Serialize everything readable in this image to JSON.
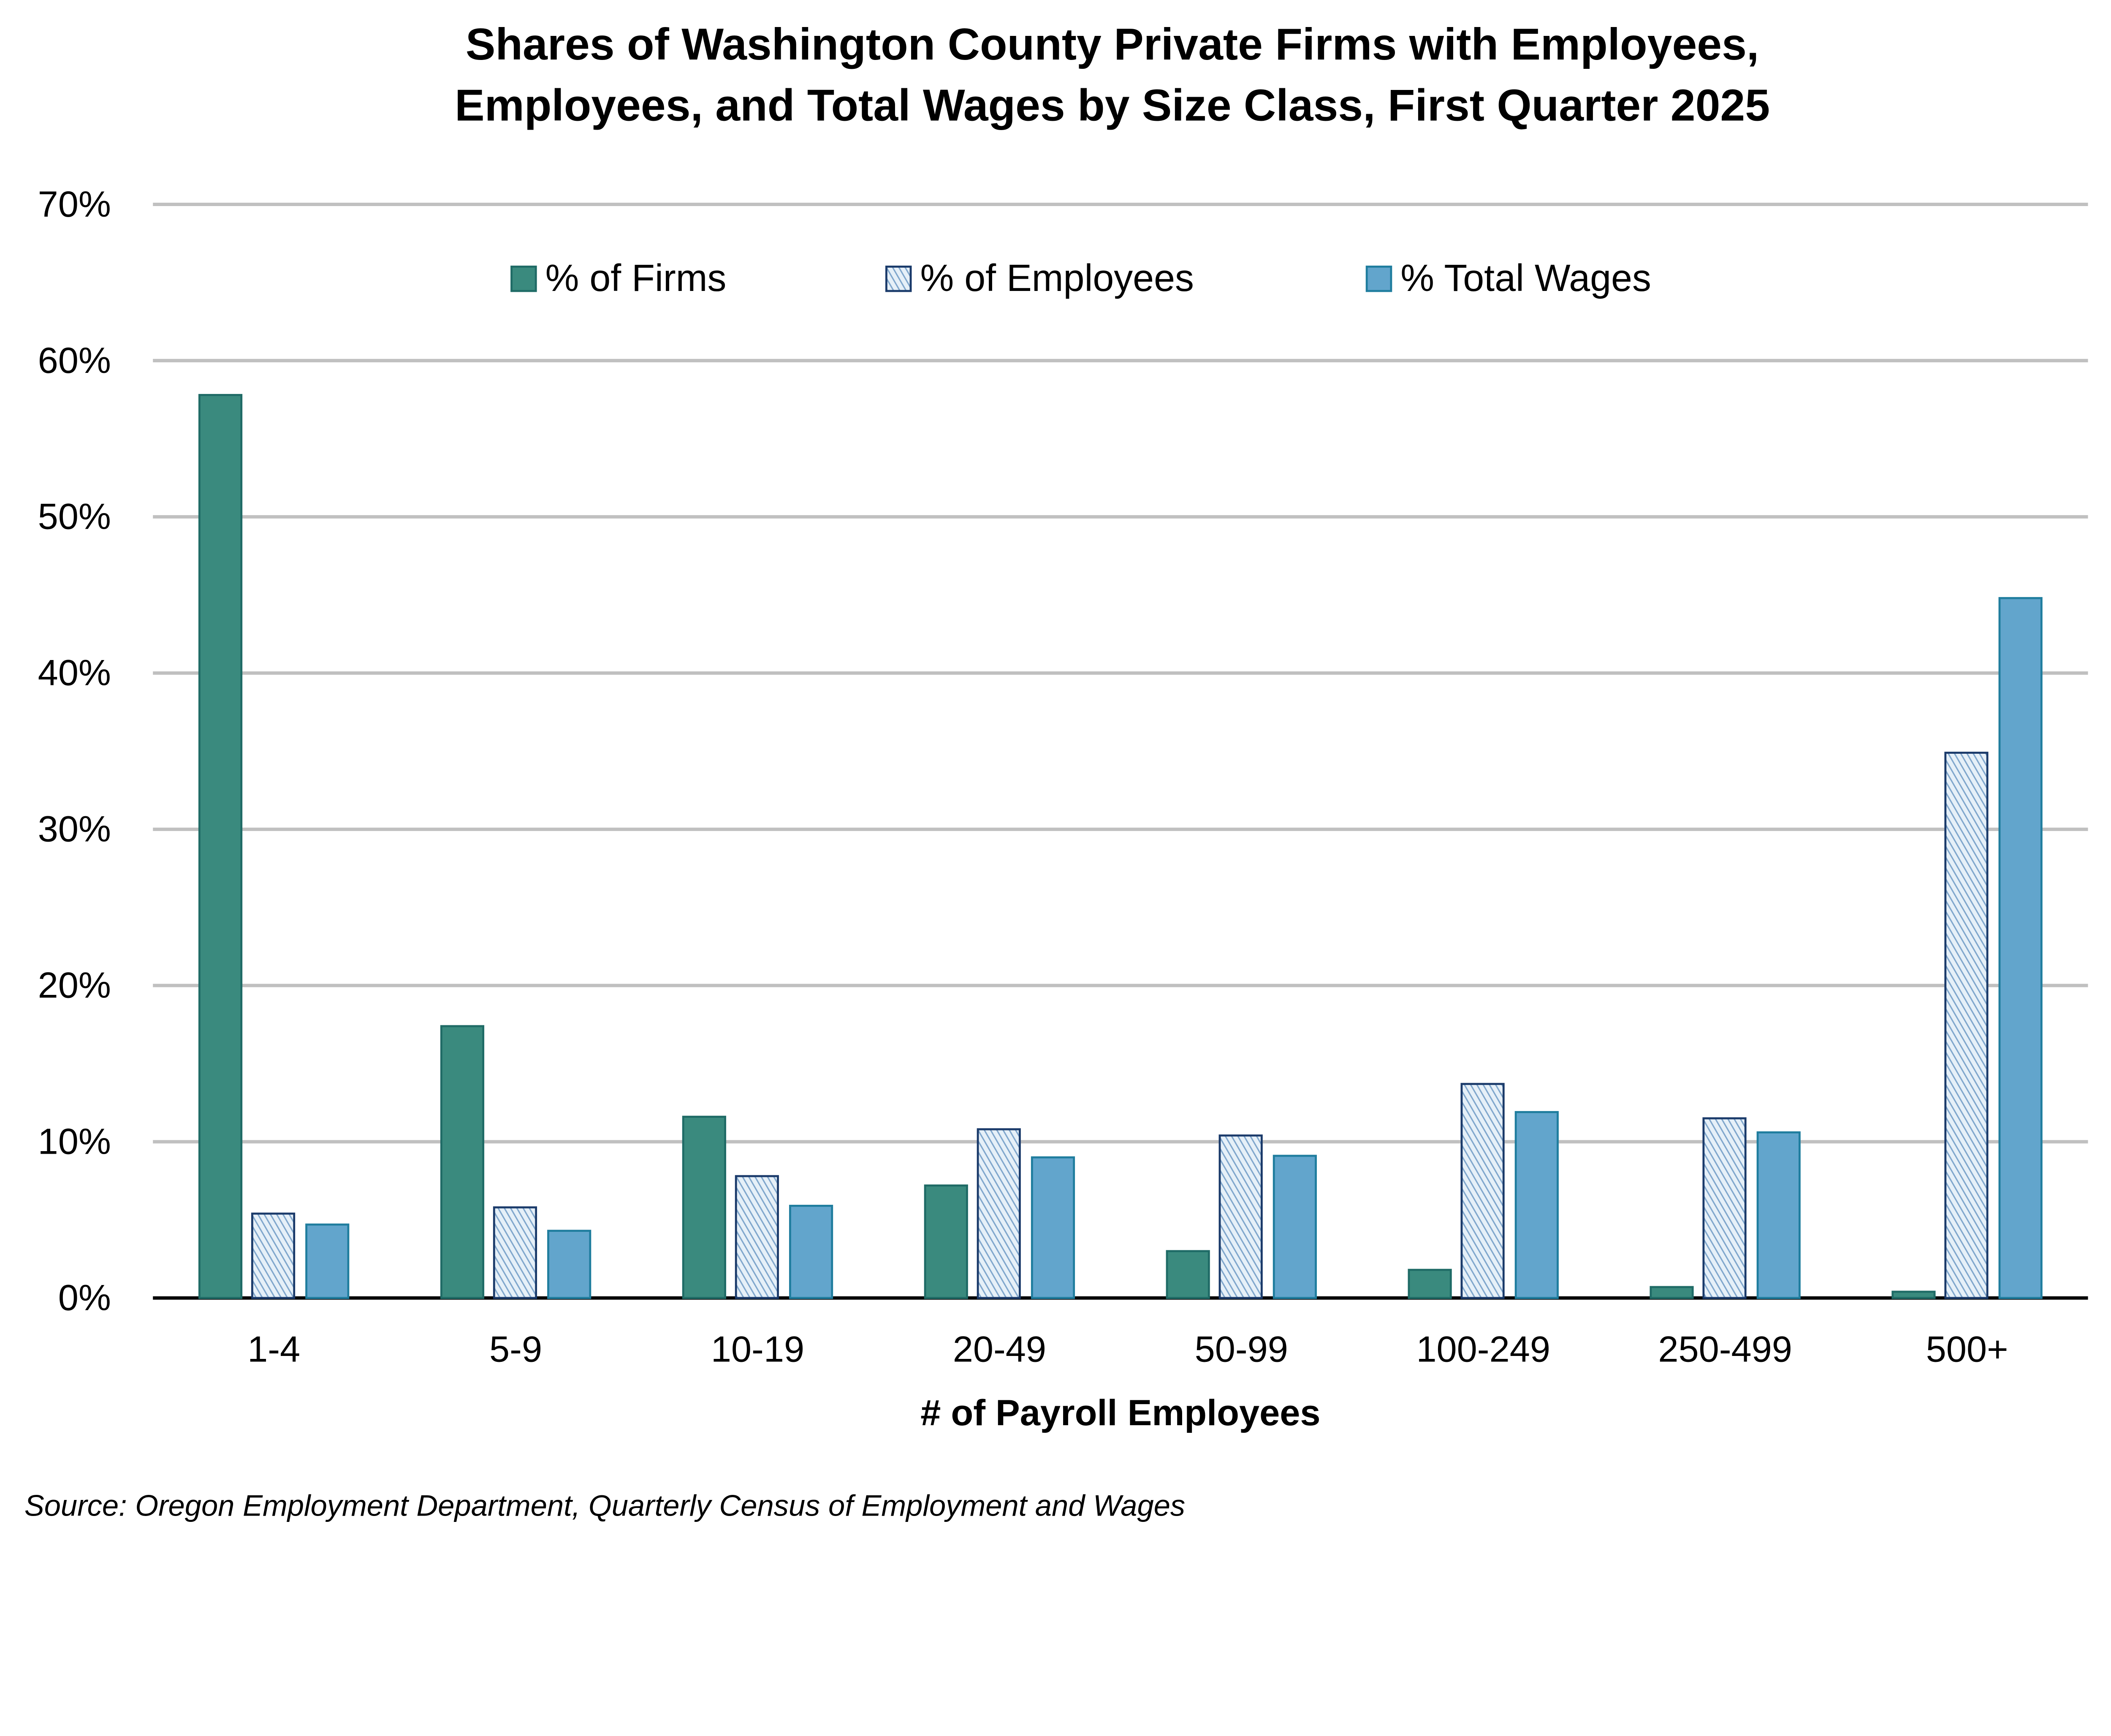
{
  "chart_data": {
    "type": "bar",
    "title": [
      "Shares of Washington County Private Firms with Employees,",
      "Employees, and Total Wages by Size Class, First Quarter 2025"
    ],
    "xlabel": "# of Payroll Employees",
    "ylabel": "",
    "ylim": [
      0,
      70
    ],
    "yticks": [
      0,
      10,
      20,
      30,
      40,
      50,
      60,
      70
    ],
    "ytick_format": "%",
    "grid": true,
    "legend_position": "top",
    "categories": [
      "1-4",
      "5-9",
      "10-19",
      "20-49",
      "50-99",
      "100-249",
      "250-499",
      "500+"
    ],
    "series": [
      {
        "name": "% of Firms",
        "fill": "#3a8a7e",
        "stroke": "#1f6b66",
        "pattern": "solid",
        "values": [
          57.8,
          17.4,
          11.6,
          7.2,
          3.0,
          1.8,
          0.7,
          0.4
        ]
      },
      {
        "name": "% of Employees",
        "fill": "#c5dcef",
        "stroke": "#1a3a6a",
        "pattern": "diagonal-hatch",
        "values": [
          5.4,
          5.8,
          7.8,
          10.8,
          10.4,
          13.7,
          11.5,
          34.9
        ]
      },
      {
        "name": "% Total Wages",
        "fill": "#62a5cc",
        "stroke": "#1f7d9e",
        "pattern": "solid",
        "values": [
          4.7,
          4.3,
          5.9,
          9.0,
          9.1,
          11.9,
          10.6,
          44.8
        ]
      }
    ],
    "source": "Source: Oregon Employment Department, Quarterly Census of Employment and Wages"
  }
}
